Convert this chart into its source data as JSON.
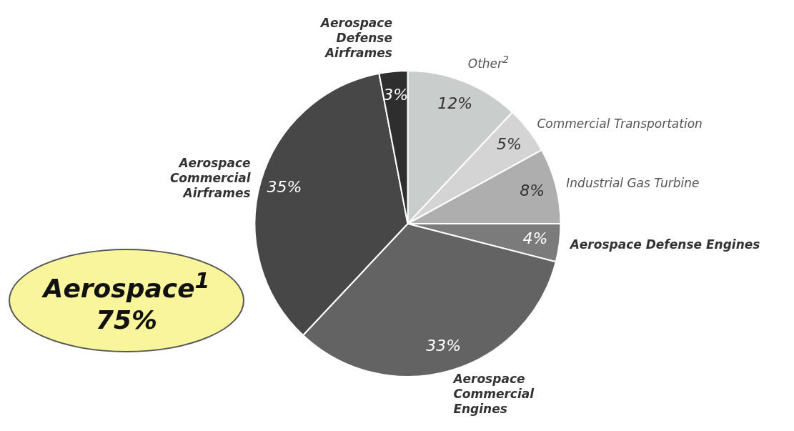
{
  "chart_data": {
    "type": "pie",
    "categories": [
      "Other$^{2}$",
      "Commercial Transportation",
      "Industrial Gas Turbine",
      "Aerospace Defense Engines",
      "Aerospace Commercial Engines",
      "Aerospace Commercial Airframes",
      "Aerospace Defense Airframes"
    ],
    "values": [
      12,
      5,
      8,
      4,
      33,
      35,
      3
    ],
    "value_labels": [
      "12%",
      "5%",
      "8%",
      "4%",
      "33%",
      "35%",
      "3%"
    ],
    "colors": [
      "#c9cdcc",
      "#d4d4d4",
      "#aeaeae",
      "#7b7b7b",
      "#636363",
      "#474747",
      "#2e2e2e"
    ],
    "annotations": [
      "Aerospace$^{1}$ 75%"
    ],
    "legend": false
  }
}
